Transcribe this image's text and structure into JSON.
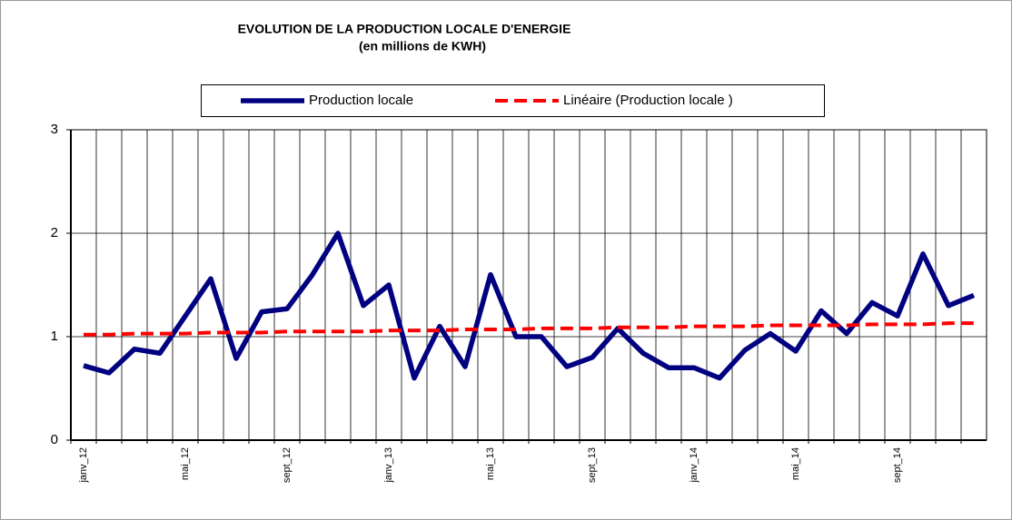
{
  "chart_data": {
    "type": "line",
    "title": "EVOLUTION DE LA PRODUCTION LOCALE D'ENERGIE",
    "subtitle": "(en millions de KWH)",
    "categories": [
      "janv_12",
      null,
      null,
      null,
      "mai_12",
      null,
      null,
      null,
      "sept_12",
      null,
      null,
      null,
      "janv_13",
      null,
      null,
      null,
      "mai_13",
      null,
      null,
      null,
      "sept_13",
      null,
      null,
      null,
      "janv_14",
      null,
      null,
      null,
      "mai_14",
      null,
      null,
      null,
      "sept_14",
      null,
      null,
      null
    ],
    "series": [
      {
        "name": "Production locale",
        "color": "#000080",
        "style": "solid",
        "values": [
          0.72,
          0.65,
          0.88,
          0.84,
          1.2,
          1.56,
          0.79,
          1.24,
          1.27,
          1.6,
          2.0,
          1.3,
          1.5,
          0.6,
          1.1,
          0.71,
          1.6,
          1.0,
          1.0,
          0.71,
          0.8,
          1.08,
          0.84,
          0.7,
          0.7,
          0.6,
          0.87,
          1.03,
          0.86,
          1.25,
          1.03,
          1.33,
          1.2,
          1.8,
          1.3,
          1.4
        ]
      },
      {
        "name": "Linéaire (Production locale )",
        "color": "#ff0000",
        "style": "dashed",
        "values": [
          1.02,
          1.02,
          1.03,
          1.03,
          1.03,
          1.04,
          1.04,
          1.04,
          1.05,
          1.05,
          1.05,
          1.05,
          1.06,
          1.06,
          1.06,
          1.07,
          1.07,
          1.07,
          1.08,
          1.08,
          1.08,
          1.09,
          1.09,
          1.09,
          1.1,
          1.1,
          1.1,
          1.11,
          1.11,
          1.11,
          1.11,
          1.12,
          1.12,
          1.12,
          1.13,
          1.13
        ]
      }
    ],
    "ylim": [
      0,
      3
    ],
    "yticks": [
      0,
      1,
      2,
      3
    ],
    "grid": true,
    "legend": "top"
  }
}
